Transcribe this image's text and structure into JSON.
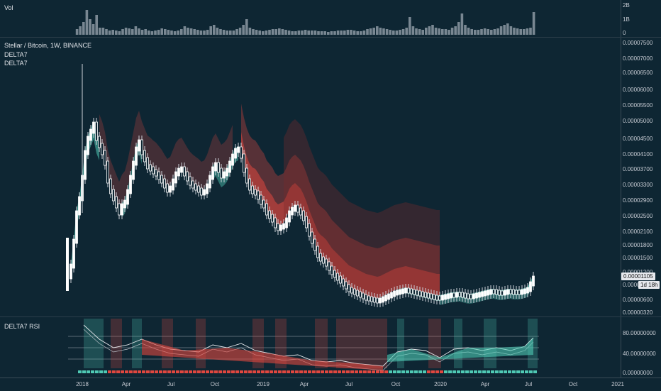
{
  "volume": {
    "label": "Vol",
    "scale": [
      "2B",
      "1B",
      "0"
    ]
  },
  "main": {
    "symbol_title": "Stellar / Bitcoin, 1W, BINANCE",
    "indicators": [
      "DELTA7",
      "DELTA7"
    ],
    "price_scale": [
      "0.00007500",
      "0.00007000",
      "0.00006500",
      "0.00006000",
      "0.00005500",
      "0.00005000",
      "0.00004500",
      "0.00004100",
      "0.00003700",
      "0.00003300",
      "0.00002900",
      "0.00002500",
      "0.00002100",
      "0.00001800",
      "0.00001500",
      "0.00001200",
      "0.00000900",
      "0.00000600",
      "0.00000320"
    ],
    "last_price": "0.00001105",
    "countdown": "1d 18h"
  },
  "rsi": {
    "label": "DELTA7 RSI",
    "scale": [
      "80.00000000",
      "40.00000000",
      "0.00000000"
    ]
  },
  "time_axis": [
    "2018",
    "Apr",
    "Jul",
    "Oct",
    "2019",
    "Apr",
    "Jul",
    "Oct",
    "2020",
    "Apr",
    "Jul",
    "Oct",
    "2021"
  ],
  "colors": {
    "background": "#0e2633",
    "bull": "#4fc9b4",
    "bear": "#e0473f",
    "candle": "#ffffff"
  }
}
